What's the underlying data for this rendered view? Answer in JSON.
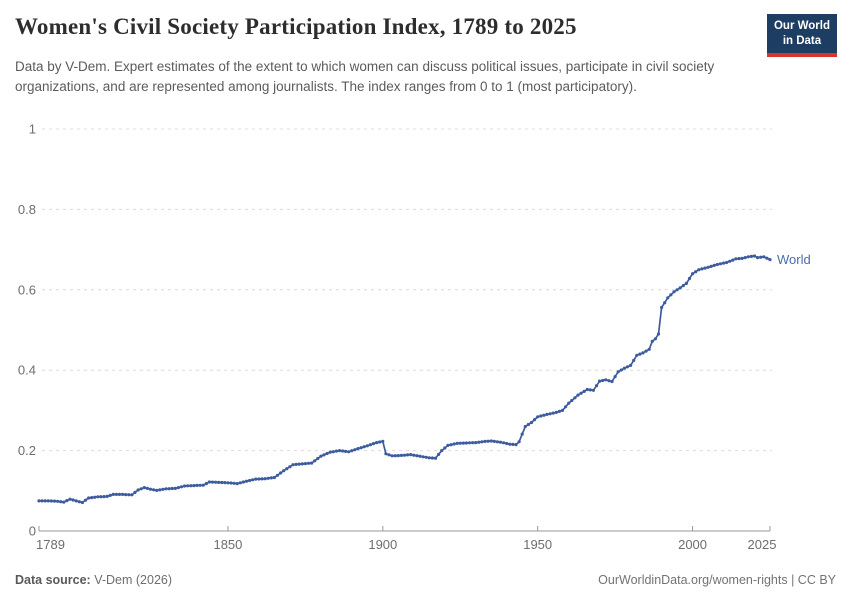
{
  "header": {
    "title": "Women's Civil Society Participation Index, 1789 to 2025",
    "logo": {
      "line1": "Our World",
      "line2": "in Data",
      "bg_color": "#1d3d63",
      "accent_color": "#d7352c"
    }
  },
  "subtitle": "Data by V-Dem. Expert estimates of the extent to which women can discuss political issues, participate in civil society organizations, and are represented among journalists. The index ranges from 0 to 1 (most participatory).",
  "chart_data": {
    "type": "line",
    "title": "Women's Civil Society Participation Index, 1789 to 2025",
    "xlabel": "",
    "ylabel": "",
    "xlim": [
      1789,
      2025
    ],
    "ylim": [
      0,
      1
    ],
    "grid": "horizontal-dashed",
    "legend": "end-of-line-label",
    "xticks": [
      {
        "value": 1789,
        "label": "1789"
      },
      {
        "value": 1850,
        "label": "1850"
      },
      {
        "value": 1900,
        "label": "1900"
      },
      {
        "value": 1950,
        "label": "1950"
      },
      {
        "value": 2000,
        "label": "2000"
      },
      {
        "value": 2025,
        "label": "2025"
      }
    ],
    "yticks": [
      {
        "value": 0,
        "label": "0"
      },
      {
        "value": 0.2,
        "label": "0.2"
      },
      {
        "value": 0.4,
        "label": "0.4"
      },
      {
        "value": 0.6,
        "label": "0.6"
      },
      {
        "value": 0.8,
        "label": "0.8"
      },
      {
        "value": 1,
        "label": "1"
      }
    ],
    "colors": {
      "line": "#3d5c9e",
      "label": "#4d6cac",
      "grid": "#dcdcdc",
      "axis": "#999999",
      "tick_text": "#6e6e6e"
    },
    "series": [
      {
        "name": "World",
        "color": "#3d5c9e",
        "points": [
          [
            1789,
            0.075
          ],
          [
            1792,
            0.075
          ],
          [
            1795,
            0.074
          ],
          [
            1797,
            0.072
          ],
          [
            1799,
            0.079
          ],
          [
            1801,
            0.075
          ],
          [
            1803,
            0.071
          ],
          [
            1805,
            0.082
          ],
          [
            1808,
            0.085
          ],
          [
            1811,
            0.086
          ],
          [
            1813,
            0.091
          ],
          [
            1816,
            0.091
          ],
          [
            1819,
            0.09
          ],
          [
            1821,
            0.102
          ],
          [
            1823,
            0.108
          ],
          [
            1825,
            0.104
          ],
          [
            1827,
            0.101
          ],
          [
            1830,
            0.105
          ],
          [
            1833,
            0.106
          ],
          [
            1836,
            0.112
          ],
          [
            1839,
            0.113
          ],
          [
            1842,
            0.114
          ],
          [
            1844,
            0.122
          ],
          [
            1847,
            0.121
          ],
          [
            1850,
            0.12
          ],
          [
            1853,
            0.118
          ],
          [
            1856,
            0.124
          ],
          [
            1859,
            0.129
          ],
          [
            1862,
            0.13
          ],
          [
            1865,
            0.133
          ],
          [
            1868,
            0.15
          ],
          [
            1871,
            0.165
          ],
          [
            1874,
            0.167
          ],
          [
            1877,
            0.169
          ],
          [
            1880,
            0.186
          ],
          [
            1883,
            0.196
          ],
          [
            1886,
            0.2
          ],
          [
            1889,
            0.197
          ],
          [
            1892,
            0.205
          ],
          [
            1895,
            0.212
          ],
          [
            1898,
            0.22
          ],
          [
            1900,
            0.223
          ],
          [
            1901,
            0.192
          ],
          [
            1903,
            0.187
          ],
          [
            1906,
            0.188
          ],
          [
            1909,
            0.19
          ],
          [
            1912,
            0.186
          ],
          [
            1915,
            0.182
          ],
          [
            1917,
            0.181
          ],
          [
            1919,
            0.2
          ],
          [
            1921,
            0.213
          ],
          [
            1924,
            0.218
          ],
          [
            1927,
            0.219
          ],
          [
            1930,
            0.22
          ],
          [
            1933,
            0.223
          ],
          [
            1935,
            0.224
          ],
          [
            1938,
            0.221
          ],
          [
            1941,
            0.216
          ],
          [
            1943,
            0.215
          ],
          [
            1944,
            0.222
          ],
          [
            1946,
            0.26
          ],
          [
            1948,
            0.27
          ],
          [
            1950,
            0.284
          ],
          [
            1953,
            0.29
          ],
          [
            1956,
            0.295
          ],
          [
            1958,
            0.3
          ],
          [
            1960,
            0.318
          ],
          [
            1963,
            0.338
          ],
          [
            1966,
            0.352
          ],
          [
            1968,
            0.35
          ],
          [
            1970,
            0.373
          ],
          [
            1972,
            0.376
          ],
          [
            1974,
            0.372
          ],
          [
            1976,
            0.396
          ],
          [
            1978,
            0.405
          ],
          [
            1980,
            0.412
          ],
          [
            1982,
            0.437
          ],
          [
            1984,
            0.443
          ],
          [
            1986,
            0.452
          ],
          [
            1987,
            0.472
          ],
          [
            1988,
            0.478
          ],
          [
            1989,
            0.49
          ],
          [
            1990,
            0.556
          ],
          [
            1992,
            0.58
          ],
          [
            1994,
            0.595
          ],
          [
            1996,
            0.605
          ],
          [
            1998,
            0.616
          ],
          [
            2000,
            0.64
          ],
          [
            2002,
            0.65
          ],
          [
            2005,
            0.656
          ],
          [
            2008,
            0.663
          ],
          [
            2011,
            0.668
          ],
          [
            2014,
            0.677
          ],
          [
            2016,
            0.678
          ],
          [
            2018,
            0.682
          ],
          [
            2020,
            0.684
          ],
          [
            2021,
            0.68
          ],
          [
            2023,
            0.682
          ],
          [
            2025,
            0.675
          ]
        ]
      }
    ]
  },
  "footer": {
    "datasource_label": "Data source:",
    "datasource_value": " V-Dem (2026)",
    "right_note": "OurWorldinData.org/women-rights | CC BY"
  }
}
